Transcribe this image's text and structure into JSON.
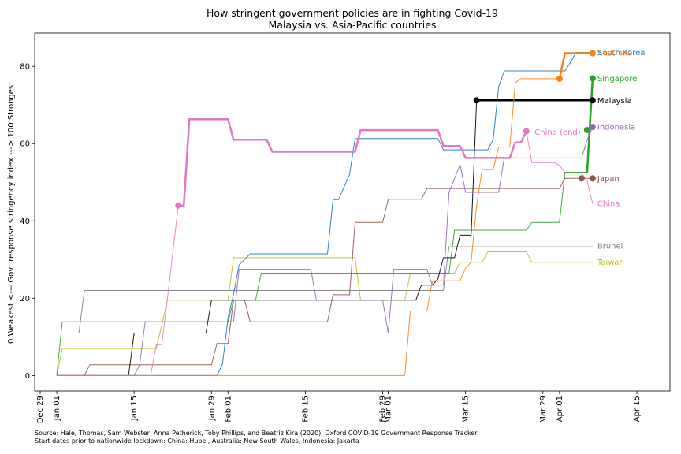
{
  "chart_data": {
    "type": "line",
    "title": "How stringent government policies are in fighting Covid-19",
    "subtitle": "Malaysia vs. Asia-Pacific countries",
    "ylabel": "0 Weakest <--- Govt response stringency index ---> 100 Strongest",
    "xlabel": "",
    "ylim": [
      -4,
      88.6
    ],
    "xlim": [
      -4,
      111
    ],
    "x_axis": "days offset from Jan 01",
    "x_ticks": [
      {
        "day": -3,
        "label": "Dec 29"
      },
      {
        "day": 0,
        "label": "Jan 01"
      },
      {
        "day": 14,
        "label": "Jan 15"
      },
      {
        "day": 28,
        "label": "Jan 29"
      },
      {
        "day": 31,
        "label": "Feb 01"
      },
      {
        "day": 45,
        "label": "Feb 15"
      },
      {
        "day": 59,
        "label": "Feb 29"
      },
      {
        "day": 60,
        "label": "Mar 01"
      },
      {
        "day": 74,
        "label": "Mar 15"
      },
      {
        "day": 88,
        "label": "Mar 29"
      },
      {
        "day": 91,
        "label": "Apr 01"
      },
      {
        "day": 105,
        "label": "Apr 15"
      }
    ],
    "y_ticks": [
      0,
      20,
      40,
      60,
      80
    ],
    "grid": false,
    "series": [
      {
        "name": "Brunei",
        "color": "#7f7f7f",
        "width": 1,
        "labelY": 33.5,
        "points": [
          [
            0,
            11
          ],
          [
            4,
            11
          ],
          [
            5,
            22
          ],
          [
            70,
            22
          ],
          [
            71,
            33.3
          ],
          [
            97,
            33.3
          ]
        ]
      },
      {
        "name": "Taiwan",
        "color": "#bcbd22",
        "width": 1,
        "labelY": 29.3,
        "points": [
          [
            0,
            0
          ],
          [
            1,
            7
          ],
          [
            18,
            7
          ],
          [
            19,
            13
          ],
          [
            20,
            19.5
          ],
          [
            31,
            19.5
          ],
          [
            32,
            30.5
          ],
          [
            54,
            30.5
          ],
          [
            55,
            19.5
          ],
          [
            63,
            19.5
          ],
          [
            64,
            26.5
          ],
          [
            72,
            26.5
          ],
          [
            73,
            29.3
          ],
          [
            77,
            29.3
          ],
          [
            78,
            32
          ],
          [
            85,
            32
          ],
          [
            86,
            29.3
          ],
          [
            97,
            29.3
          ]
        ]
      },
      {
        "name": "Japan",
        "color": "#8c564b",
        "width": 1,
        "labelY": 51,
        "points": [
          [
            0,
            0
          ],
          [
            5,
            0
          ],
          [
            6,
            2.8
          ],
          [
            28,
            2.8
          ],
          [
            29,
            8.3
          ],
          [
            31,
            8.3
          ],
          [
            32,
            19.5
          ],
          [
            34,
            19.5
          ],
          [
            35,
            13.9
          ],
          [
            49,
            13.9
          ],
          [
            50,
            20.9
          ],
          [
            53,
            20.9
          ],
          [
            54,
            39.6
          ],
          [
            59,
            39.6
          ],
          [
            60,
            45.6
          ],
          [
            66,
            45.6
          ],
          [
            67,
            48.4
          ],
          [
            91,
            48.4
          ],
          [
            92,
            51
          ],
          [
            97,
            51
          ]
        ],
        "marker": {
          "x": 97,
          "y": 51
        },
        "marker2": {
          "x": 95,
          "y": 51
        }
      },
      {
        "name": "Singapore",
        "color": "#2ca02c",
        "width": 1,
        "labelY": 76.9,
        "points": [
          [
            0,
            0
          ],
          [
            1,
            13.9
          ],
          [
            31,
            13.9
          ],
          [
            32,
            19.5
          ],
          [
            36,
            19.5
          ],
          [
            37,
            26.5
          ],
          [
            71,
            26.5
          ],
          [
            72,
            37.6
          ],
          [
            85,
            37.6
          ],
          [
            86,
            39.6
          ],
          [
            91,
            39.6
          ],
          [
            92,
            52.6
          ],
          [
            96,
            52.6
          ],
          [
            97,
            76.9
          ]
        ],
        "thick_from": 95,
        "marker": {
          "x": 97,
          "y": 76.9
        },
        "marker2": {
          "x": 96,
          "y": 63.5
        }
      },
      {
        "name": "Malaysia",
        "color": "#000000",
        "width": 1,
        "labelY": 71.2,
        "points": [
          [
            0,
            0
          ],
          [
            13,
            0
          ],
          [
            14,
            11
          ],
          [
            27,
            11
          ],
          [
            28,
            19.5
          ],
          [
            65,
            19.5
          ],
          [
            66,
            23.4
          ],
          [
            68,
            23.4
          ],
          [
            69,
            25
          ],
          [
            70,
            30.5
          ],
          [
            72,
            30.5
          ],
          [
            73,
            36.3
          ],
          [
            75,
            36.3
          ],
          [
            76,
            71.2
          ],
          [
            97,
            71.2
          ]
        ],
        "thick_from": 76,
        "marker": {
          "x": 97,
          "y": 71.2
        },
        "marker2": {
          "x": 76,
          "y": 71.2
        }
      },
      {
        "name": "South Korea",
        "color": "#1f77b4",
        "width": 1,
        "labelY": 83.6,
        "points": [
          [
            0,
            0
          ],
          [
            29,
            0
          ],
          [
            30,
            3
          ],
          [
            31,
            14.9
          ],
          [
            32,
            21
          ],
          [
            33,
            28.6
          ],
          [
            34,
            30
          ],
          [
            35,
            31.5
          ],
          [
            49,
            31.5
          ],
          [
            50,
            45.5
          ],
          [
            51,
            45.5
          ],
          [
            53,
            52
          ],
          [
            54,
            61.3
          ],
          [
            69,
            61.3
          ],
          [
            70,
            58.4
          ],
          [
            78,
            58.4
          ],
          [
            79,
            61
          ],
          [
            80,
            74.7
          ],
          [
            81,
            78.8
          ],
          [
            92,
            78.8
          ],
          [
            93,
            81
          ],
          [
            94,
            83.6
          ],
          [
            97,
            83.6
          ]
        ]
      },
      {
        "name": "Australia",
        "color": "#ff7f0e",
        "width": 1,
        "labelY": 83.5,
        "points": [
          [
            0,
            0
          ],
          [
            63,
            0
          ],
          [
            64,
            16.7
          ],
          [
            67,
            16.7
          ],
          [
            68,
            24.5
          ],
          [
            73,
            24.5
          ],
          [
            74,
            27.8
          ],
          [
            75,
            29.3
          ],
          [
            76,
            44
          ],
          [
            77,
            53.3
          ],
          [
            79,
            53.3
          ],
          [
            80,
            59.1
          ],
          [
            82,
            59.1
          ],
          [
            83,
            75.8
          ],
          [
            84,
            76.8
          ],
          [
            90,
            76.8
          ],
          [
            91,
            76.8
          ],
          [
            92,
            83.4
          ],
          [
            97,
            83.4
          ]
        ],
        "thick_from": 91,
        "marker": {
          "x": 97,
          "y": 83.4
        },
        "marker2": {
          "x": 91,
          "y": 76.8
        }
      },
      {
        "name": "Indonesia",
        "color": "#9467bd",
        "width": 1,
        "labelY": 64.3,
        "points": [
          [
            0,
            0
          ],
          [
            13,
            0
          ],
          [
            14,
            0
          ],
          [
            15,
            2.8
          ],
          [
            16,
            13.9
          ],
          [
            32,
            13.9
          ],
          [
            33,
            27.5
          ],
          [
            46,
            27.5
          ],
          [
            47,
            19.5
          ],
          [
            59,
            19.5
          ],
          [
            60,
            11
          ],
          [
            61,
            27.5
          ],
          [
            67,
            27.5
          ],
          [
            68,
            23.4
          ],
          [
            70,
            23.4
          ],
          [
            71,
            47.4
          ],
          [
            73,
            54.6
          ],
          [
            74,
            47.4
          ],
          [
            80,
            47.4
          ],
          [
            81,
            56.3
          ],
          [
            95,
            56.3
          ],
          [
            96,
            61
          ],
          [
            97,
            64.3
          ]
        ],
        "marker": {
          "x": 97,
          "y": 64.3
        }
      },
      {
        "name": "China",
        "color": "#e377c2",
        "width": 1,
        "labelY": 44.5,
        "points": [
          [
            0,
            0
          ],
          [
            17,
            0
          ],
          [
            18,
            8
          ],
          [
            19,
            8
          ],
          [
            20,
            19.5
          ],
          [
            22,
            44
          ]
        ],
        "tail": [
          [
            22,
            44
          ],
          [
            23,
            44
          ],
          [
            24,
            66.3
          ],
          [
            29,
            66.3
          ],
          [
            31,
            66.3
          ],
          [
            32,
            61
          ],
          [
            38,
            61
          ],
          [
            39,
            57.9
          ],
          [
            54,
            57.9
          ],
          [
            55,
            63.5
          ],
          [
            60,
            63.5
          ],
          [
            69,
            63.5
          ],
          [
            70,
            59.4
          ],
          [
            73,
            59.4
          ],
          [
            74,
            56.3
          ],
          [
            82,
            56.3
          ],
          [
            83,
            60.3
          ],
          [
            84,
            60.3
          ],
          [
            85,
            63.2
          ]
        ],
        "china_thin": [
          [
            85,
            63.2
          ],
          [
            86,
            55.1
          ],
          [
            90,
            55.1
          ],
          [
            91,
            54.4
          ],
          [
            92,
            52.4
          ],
          [
            95,
            52.4
          ],
          [
            96,
            50.4
          ],
          [
            97,
            44.5
          ]
        ],
        "thick_range": [
          22,
          85
        ],
        "marker": {
          "x": 22,
          "y": 44
        },
        "marker2": {
          "x": 85,
          "y": 63.2
        }
      },
      {
        "name": "China (end)",
        "color": "#e377c2",
        "width": 1,
        "labelY": 63,
        "label_x_day": 86.5,
        "label_only": true
      }
    ],
    "series_labels": {
      "brunei": "Brunei",
      "taiwan": "Taiwan",
      "japan": "Japan",
      "singapore": "Singapore",
      "malaysia": "Malaysia",
      "south_korea": "South Korea",
      "australia": "Australia",
      "indonesia": "Indonesia",
      "china": "China",
      "china_end": "China (end)"
    }
  },
  "footnotes": {
    "source": "Source: Hale, Thomas, Sam Webster, Anna Petherick, Toby Phillips, and Beatriz Kira (2020). Oxford COVID-19 Government Response Tracker",
    "start_dates": "Start dates prior to nationwide lockdown: China: Hubei, Australia: New South Wales, Indonesia: Jakarta"
  }
}
